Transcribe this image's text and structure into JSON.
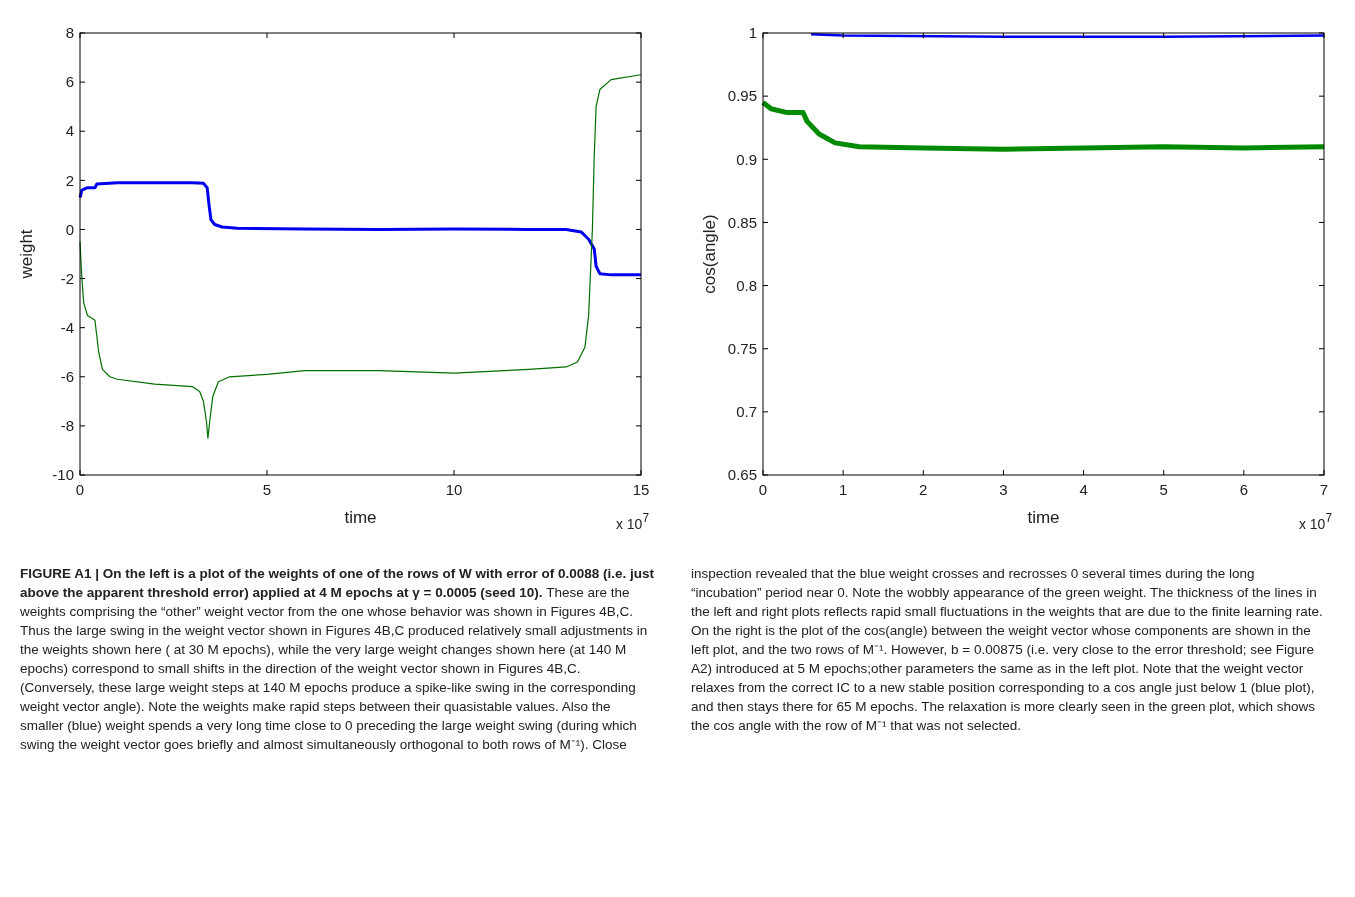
{
  "chart_data": [
    {
      "type": "line",
      "xlabel": "time",
      "ylabel": "weight",
      "xlim": [
        0,
        15
      ],
      "ylim": [
        -10,
        8
      ],
      "xticks": [
        0,
        5,
        10,
        15
      ],
      "yticks": [
        -10,
        -8,
        -6,
        -4,
        -2,
        0,
        2,
        4,
        6,
        8
      ],
      "series": [
        {
          "color": "#0000ee",
          "x": [
            0,
            0.05,
            0.2,
            0.4,
            0.45,
            1,
            2,
            3,
            3.3,
            3.4,
            3.45,
            3.5,
            3.6,
            3.8,
            4.2,
            6,
            8,
            10,
            12,
            13,
            13.4,
            13.6,
            13.75,
            13.8,
            13.9,
            14.2,
            15
          ],
          "values": [
            1.3,
            1.6,
            1.7,
            1.7,
            1.85,
            1.9,
            1.9,
            1.9,
            1.88,
            1.7,
            1.0,
            0.4,
            0.2,
            0.1,
            0.05,
            0.02,
            0,
            0.02,
            0,
            0,
            -0.1,
            -0.4,
            -0.8,
            -1.5,
            -1.8,
            -1.85,
            -1.85
          ]
        },
        {
          "color": "#006f00",
          "x": [
            0,
            0.05,
            0.1,
            0.2,
            0.35,
            0.4,
            0.5,
            0.6,
            0.8,
            1,
            2,
            3,
            3.2,
            3.3,
            3.38,
            3.42,
            3.47,
            3.55,
            3.7,
            4,
            5,
            6,
            8,
            10,
            12,
            13,
            13.3,
            13.5,
            13.6,
            13.7,
            13.75,
            13.8,
            13.9,
            14.2,
            15
          ],
          "values": [
            -0.5,
            -2,
            -3,
            -3.5,
            -3.65,
            -3.7,
            -5,
            -5.7,
            -6,
            -6.1,
            -6.3,
            -6.4,
            -6.6,
            -7,
            -7.8,
            -8.5,
            -7.8,
            -6.8,
            -6.2,
            -6,
            -5.9,
            -5.75,
            -5.75,
            -5.85,
            -5.7,
            -5.6,
            -5.4,
            -4.8,
            -3.5,
            0,
            3,
            5,
            5.7,
            6.1,
            6.3
          ]
        }
      ],
      "annotations": [
        "x 10$^{7}$",
        "FIGURE A1 | On the left is a plot of the weights of one of the rows of W with error of 0.0088 (i.e. just above the apparent threshold error) applied at 4 M epochs at γ = 0.0005 (seed 10).",
        "These are the weights comprising the “other” weight vector from the one whose behavior was shown in Figures 4B,C. Thus the large swing in the weight vector shown in Figures 4B,C produced relatively small adjustments in the weights shown here ( at 30 M epochs), while the very large weight changes shown here (at 140 M epochs) correspond to small shifts in the direction of the weight vector shown in Figures 4B,C. (Conversely, these large weight steps at 140 M epochs produce a spike-like swing in the corresponding weight vector angle). Note the weights make rapid steps between their quasistable values. Also the smaller (blue) weight spends a very long time close to 0 preceding the large weight swing (during which swing the weight vector goes briefly and almost simultaneously orthogonal to both rows of M⁻¹). Close inspection revealed that the blue weight crosses and recrosses 0 several times during the long “incubation” period near 0. Note the wobbly appearance of the green weight. The thickness of the lines in the left and right plots reflects rapid small fluctuations in the weights that are due to the finite learning rate. On the right is the plot of the cos(angle) between the weight vector whose components are shown in the left plot, and the two rows of M⁻¹. However, b = 0.00875 (i.e. very close to the error threshold; see Figure A2) introduced at 5 M epochs;other parameters the same as in the left plot. Note that the weight vector relaxes from the correct IC to a new stable position corresponding to a cos angle just below 1 (blue plot), and then stays there for 65 M epochs. The relaxation is more clearly seen in the green plot, which shows the cos angle with the row of M⁻¹ that was not selected."
      ]
    },
    {
      "type": "line",
      "xlabel": "time",
      "ylabel": "cos(angle)",
      "xlim": [
        0,
        7
      ],
      "ylim": [
        0.65,
        1
      ],
      "xticks": [
        0,
        1,
        2,
        3,
        4,
        5,
        6,
        7
      ],
      "yticks": [
        0.65,
        0.7,
        0.75,
        0.8,
        0.85,
        0.9,
        0.95,
        1
      ],
      "series": [
        {
          "color": "#0000ee",
          "x": [
            0.6,
            1,
            3,
            5,
            7
          ],
          "values": [
            0.999,
            0.998,
            0.997,
            0.997,
            0.998
          ]
        },
        {
          "color": "#008a00",
          "x": [
            0,
            0.1,
            0.3,
            0.5,
            0.55,
            0.7,
            0.9,
            1.2,
            2,
            3,
            4,
            5,
            6,
            7
          ],
          "values": [
            0.945,
            0.94,
            0.937,
            0.937,
            0.93,
            0.92,
            0.913,
            0.91,
            0.909,
            0.908,
            0.909,
            0.91,
            0.909,
            0.91
          ]
        }
      ],
      "annotations": [
        "x 10$^{7}$"
      ]
    }
  ]
}
